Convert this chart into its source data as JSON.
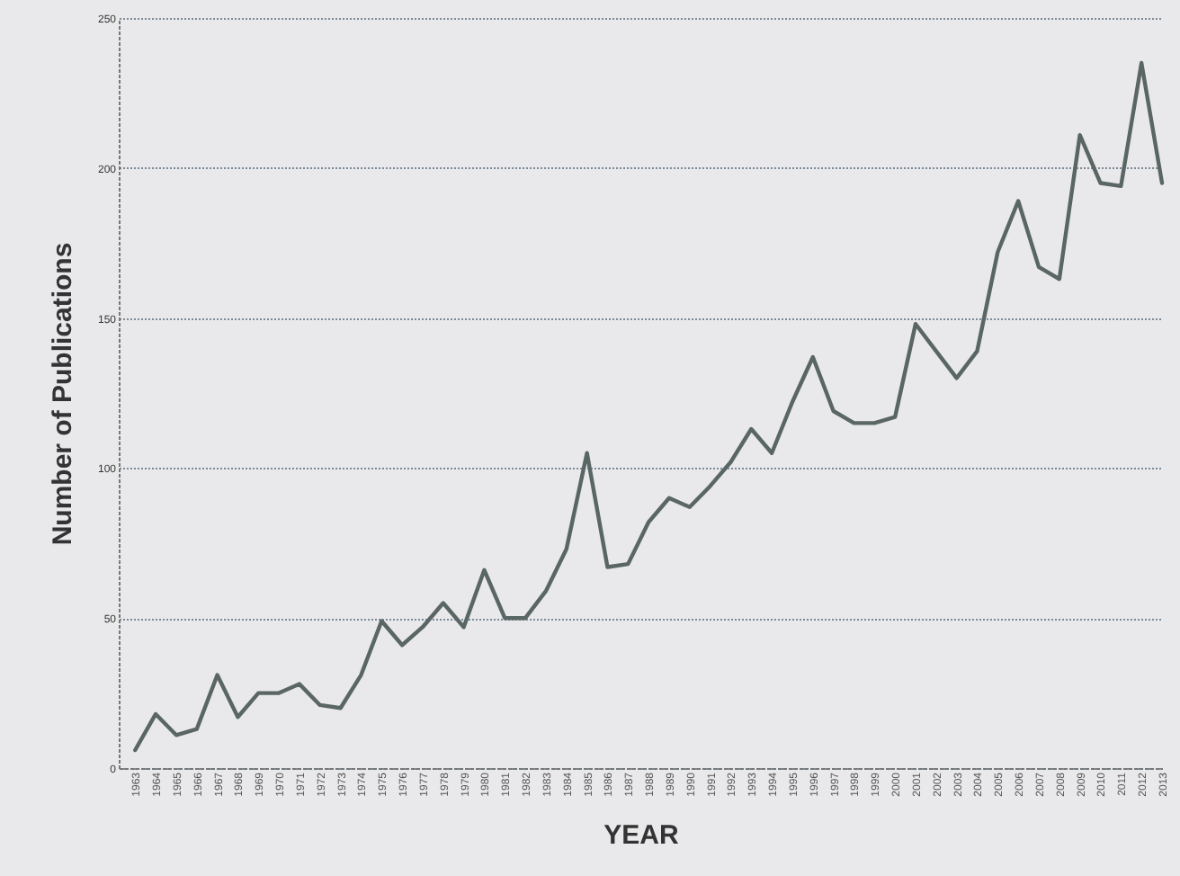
{
  "chart_data": {
    "type": "line",
    "xlabel": "YEAR",
    "ylabel": "Number of Publications",
    "categories": [
      "1963",
      "1964",
      "1965",
      "1966",
      "1967",
      "1968",
      "1969",
      "1970",
      "1971",
      "1972",
      "1973",
      "1974",
      "1975",
      "1976",
      "1977",
      "1978",
      "1979",
      "1980",
      "1981",
      "1982",
      "1983",
      "1984",
      "1985",
      "1986",
      "1987",
      "1988",
      "1989",
      "1990",
      "1991",
      "1992",
      "1993",
      "1994",
      "1995",
      "1996",
      "1997",
      "1998",
      "1999",
      "2000",
      "2001",
      "2002",
      "2003",
      "2004",
      "2005",
      "2006",
      "2007",
      "2008",
      "2009",
      "2010",
      "2011",
      "2012",
      "2013"
    ],
    "series": [
      {
        "color": "#5a6663",
        "values": [
          6,
          18,
          11,
          13,
          31,
          17,
          25,
          25,
          28,
          21,
          20,
          31,
          49,
          41,
          47,
          55,
          47,
          66,
          50,
          50,
          59,
          73,
          105,
          67,
          68,
          82,
          90,
          87,
          94,
          102,
          113,
          105,
          122,
          137,
          119,
          115,
          115,
          117,
          148,
          139,
          130,
          139,
          172,
          189,
          167,
          163,
          211,
          195,
          194,
          235,
          195
        ]
      }
    ],
    "ylim": [
      0,
      250
    ],
    "yticks": [
      0,
      50,
      100,
      150,
      200,
      250
    ],
    "grid": "y",
    "marker": "none",
    "line_style": "solid"
  }
}
